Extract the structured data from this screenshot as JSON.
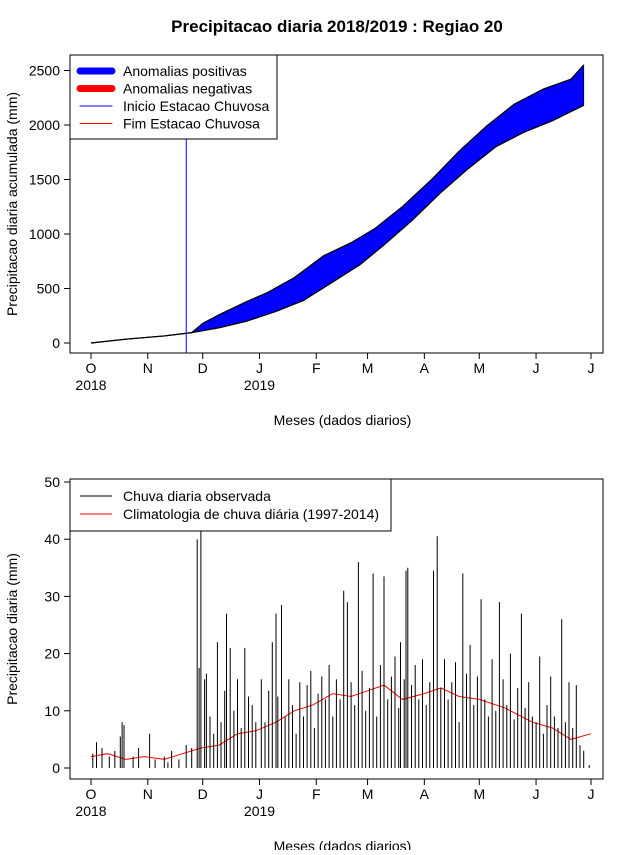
{
  "title": "Precipitacao diaria 2018/2019 : Regiao 20",
  "colors": {
    "positive": "#0000ff",
    "negative": "#ff0000",
    "onset": "#0000ff",
    "end": "#ff0000",
    "observed": "#000000",
    "climatology": "#ff0000"
  },
  "chart_data": [
    {
      "type": "area",
      "xlabel": "Meses (dados diarios)",
      "ylabel": "Precipitacao diaria acumulada (mm)",
      "ylim": [
        0,
        2500
      ],
      "yticks": [
        "0",
        "500",
        "1000",
        "1500",
        "2000",
        "2500"
      ],
      "xaxis": {
        "start": "2018-10-01",
        "end": "2019-07-01",
        "month_ticks": [
          "O",
          "N",
          "D",
          "J",
          "F",
          "M",
          "A",
          "M",
          "J",
          "J"
        ],
        "year_labels": [
          {
            "month_index": 0,
            "text": "2018"
          },
          {
            "month_index": 3,
            "text": "2019"
          }
        ]
      },
      "legend": {
        "placement": "top-left",
        "entries": [
          "Anomalias positivas",
          "Anomalias negativas",
          "Inicio Estacao Chuvosa",
          "Fim Estacao Chuvosa"
        ]
      },
      "onset_date": "2018-11-22",
      "series": [
        {
          "name": "Anomalias positivas",
          "observed_cumulative": [
            {
              "x": "2018-10-01",
              "y": 0
            },
            {
              "x": "2018-10-20",
              "y": 35
            },
            {
              "x": "2018-11-10",
              "y": 65
            },
            {
              "x": "2018-11-25",
              "y": 95
            },
            {
              "x": "2018-12-01",
              "y": 180
            },
            {
              "x": "2018-12-10",
              "y": 260
            },
            {
              "x": "2018-12-25",
              "y": 380
            },
            {
              "x": "2019-01-05",
              "y": 460
            },
            {
              "x": "2019-01-20",
              "y": 600
            },
            {
              "x": "2019-02-05",
              "y": 800
            },
            {
              "x": "2019-02-20",
              "y": 920
            },
            {
              "x": "2019-03-05",
              "y": 1050
            },
            {
              "x": "2019-03-20",
              "y": 1250
            },
            {
              "x": "2019-04-05",
              "y": 1500
            },
            {
              "x": "2019-04-20",
              "y": 1760
            },
            {
              "x": "2019-05-05",
              "y": 1990
            },
            {
              "x": "2019-05-20",
              "y": 2190
            },
            {
              "x": "2019-06-05",
              "y": 2330
            },
            {
              "x": "2019-06-20",
              "y": 2420
            },
            {
              "x": "2019-06-27",
              "y": 2550
            }
          ],
          "climatology_cumulative": [
            {
              "x": "2018-10-01",
              "y": 0
            },
            {
              "x": "2018-10-20",
              "y": 35
            },
            {
              "x": "2018-11-10",
              "y": 65
            },
            {
              "x": "2018-11-25",
              "y": 95
            },
            {
              "x": "2018-12-10",
              "y": 140
            },
            {
              "x": "2018-12-25",
              "y": 200
            },
            {
              "x": "2019-01-10",
              "y": 290
            },
            {
              "x": "2019-01-25",
              "y": 390
            },
            {
              "x": "2019-02-10",
              "y": 560
            },
            {
              "x": "2019-02-25",
              "y": 720
            },
            {
              "x": "2019-03-10",
              "y": 900
            },
            {
              "x": "2019-03-25",
              "y": 1120
            },
            {
              "x": "2019-04-10",
              "y": 1380
            },
            {
              "x": "2019-04-25",
              "y": 1600
            },
            {
              "x": "2019-05-10",
              "y": 1800
            },
            {
              "x": "2019-05-25",
              "y": 1930
            },
            {
              "x": "2019-06-10",
              "y": 2040
            },
            {
              "x": "2019-06-27",
              "y": 2180
            }
          ]
        }
      ]
    },
    {
      "type": "bar",
      "xlabel": "Meses (dados diarios)",
      "ylabel": "Precipitacao diaria (mm)",
      "ylim": [
        0,
        50
      ],
      "yticks": [
        "0",
        "10",
        "20",
        "30",
        "40",
        "50"
      ],
      "xaxis": {
        "start": "2018-10-01",
        "end": "2019-07-01",
        "month_ticks": [
          "O",
          "N",
          "D",
          "J",
          "F",
          "M",
          "A",
          "M",
          "J",
          "J"
        ],
        "year_labels": [
          {
            "month_index": 0,
            "text": "2018"
          },
          {
            "month_index": 3,
            "text": "2019"
          }
        ]
      },
      "legend": {
        "placement": "top-left",
        "entries": [
          "Chuva diaria observada",
          "Climatologia de chuva diária (1997-2014)"
        ]
      },
      "series": [
        {
          "name": "Chuva diaria observada",
          "values": [
            {
              "x": "2018-10-02",
              "y": 2.5
            },
            {
              "x": "2018-10-04",
              "y": 4.5
            },
            {
              "x": "2018-10-07",
              "y": 3.5
            },
            {
              "x": "2018-10-11",
              "y": 2
            },
            {
              "x": "2018-10-14",
              "y": 3
            },
            {
              "x": "2018-10-17",
              "y": 5.5
            },
            {
              "x": "2018-10-18",
              "y": 8
            },
            {
              "x": "2018-10-19",
              "y": 7.5
            },
            {
              "x": "2018-10-24",
              "y": 2
            },
            {
              "x": "2018-10-27",
              "y": 3.5
            },
            {
              "x": "2018-11-02",
              "y": 6
            },
            {
              "x": "2018-11-05",
              "y": 1.5
            },
            {
              "x": "2018-11-10",
              "y": 2
            },
            {
              "x": "2018-11-12",
              "y": 1
            },
            {
              "x": "2018-11-14",
              "y": 3
            },
            {
              "x": "2018-11-18",
              "y": 1.5
            },
            {
              "x": "2018-11-22",
              "y": 4
            },
            {
              "x": "2018-11-25",
              "y": 3.5
            },
            {
              "x": "2018-11-28",
              "y": 40
            },
            {
              "x": "2018-11-29",
              "y": 17.5
            },
            {
              "x": "2018-11-30",
              "y": 42
            },
            {
              "x": "2018-12-02",
              "y": 15.5
            },
            {
              "x": "2018-12-03",
              "y": 16.5
            },
            {
              "x": "2018-12-05",
              "y": 9
            },
            {
              "x": "2018-12-07",
              "y": 6
            },
            {
              "x": "2018-12-09",
              "y": 22
            },
            {
              "x": "2018-12-11",
              "y": 8
            },
            {
              "x": "2018-12-13",
              "y": 13.5
            },
            {
              "x": "2018-12-14",
              "y": 27
            },
            {
              "x": "2018-12-16",
              "y": 21
            },
            {
              "x": "2018-12-18",
              "y": 10
            },
            {
              "x": "2018-12-20",
              "y": 15.5
            },
            {
              "x": "2018-12-22",
              "y": 7
            },
            {
              "x": "2018-12-24",
              "y": 21
            },
            {
              "x": "2018-12-26",
              "y": 12.5
            },
            {
              "x": "2018-12-28",
              "y": 11
            },
            {
              "x": "2018-12-30",
              "y": 8
            },
            {
              "x": "2019-01-02",
              "y": 15.5
            },
            {
              "x": "2019-01-04",
              "y": 8
            },
            {
              "x": "2019-01-06",
              "y": 13.5
            },
            {
              "x": "2019-01-08",
              "y": 22
            },
            {
              "x": "2019-01-10",
              "y": 27
            },
            {
              "x": "2019-01-11",
              "y": 12.5
            },
            {
              "x": "2019-01-13",
              "y": 28.5
            },
            {
              "x": "2019-01-15",
              "y": 9
            },
            {
              "x": "2019-01-17",
              "y": 15.5
            },
            {
              "x": "2019-01-19",
              "y": 11
            },
            {
              "x": "2019-01-21",
              "y": 6
            },
            {
              "x": "2019-01-23",
              "y": 15
            },
            {
              "x": "2019-01-25",
              "y": 9
            },
            {
              "x": "2019-01-27",
              "y": 14.5
            },
            {
              "x": "2019-01-29",
              "y": 17
            },
            {
              "x": "2019-01-31",
              "y": 7
            },
            {
              "x": "2019-02-02",
              "y": 13
            },
            {
              "x": "2019-02-04",
              "y": 16
            },
            {
              "x": "2019-02-06",
              "y": 12
            },
            {
              "x": "2019-02-08",
              "y": 18
            },
            {
              "x": "2019-02-10",
              "y": 9
            },
            {
              "x": "2019-02-12",
              "y": 15.5
            },
            {
              "x": "2019-02-14",
              "y": 12
            },
            {
              "x": "2019-02-16",
              "y": 31
            },
            {
              "x": "2019-02-18",
              "y": 29
            },
            {
              "x": "2019-02-20",
              "y": 15
            },
            {
              "x": "2019-02-22",
              "y": 11
            },
            {
              "x": "2019-02-24",
              "y": 36
            },
            {
              "x": "2019-02-26",
              "y": 17
            },
            {
              "x": "2019-02-28",
              "y": 10
            },
            {
              "x": "2019-03-02",
              "y": 14
            },
            {
              "x": "2019-03-04",
              "y": 34
            },
            {
              "x": "2019-03-06",
              "y": 9
            },
            {
              "x": "2019-03-08",
              "y": 18
            },
            {
              "x": "2019-03-10",
              "y": 33.5
            },
            {
              "x": "2019-03-12",
              "y": 12
            },
            {
              "x": "2019-03-14",
              "y": 16
            },
            {
              "x": "2019-03-16",
              "y": 19.5
            },
            {
              "x": "2019-03-18",
              "y": 10.5
            },
            {
              "x": "2019-03-19",
              "y": 22
            },
            {
              "x": "2019-03-21",
              "y": 15.5
            },
            {
              "x": "2019-03-22",
              "y": 34.5
            },
            {
              "x": "2019-03-23",
              "y": 35
            },
            {
              "x": "2019-03-25",
              "y": 14.5
            },
            {
              "x": "2019-03-27",
              "y": 18
            },
            {
              "x": "2019-03-29",
              "y": 12
            },
            {
              "x": "2019-03-31",
              "y": 19
            },
            {
              "x": "2019-04-02",
              "y": 11
            },
            {
              "x": "2019-04-04",
              "y": 15
            },
            {
              "x": "2019-04-06",
              "y": 34.5
            },
            {
              "x": "2019-04-08",
              "y": 40.5
            },
            {
              "x": "2019-04-10",
              "y": 14
            },
            {
              "x": "2019-04-12",
              "y": 19
            },
            {
              "x": "2019-04-14",
              "y": 12
            },
            {
              "x": "2019-04-16",
              "y": 15
            },
            {
              "x": "2019-04-18",
              "y": 18.5
            },
            {
              "x": "2019-04-20",
              "y": 8
            },
            {
              "x": "2019-04-22",
              "y": 34
            },
            {
              "x": "2019-04-24",
              "y": 16.5
            },
            {
              "x": "2019-04-26",
              "y": 21.5
            },
            {
              "x": "2019-04-28",
              "y": 11
            },
            {
              "x": "2019-04-30",
              "y": 16
            },
            {
              "x": "2019-05-02",
              "y": 29.5
            },
            {
              "x": "2019-05-04",
              "y": 12
            },
            {
              "x": "2019-05-06",
              "y": 9
            },
            {
              "x": "2019-05-08",
              "y": 19
            },
            {
              "x": "2019-05-10",
              "y": 10
            },
            {
              "x": "2019-05-12",
              "y": 29
            },
            {
              "x": "2019-05-14",
              "y": 15.5
            },
            {
              "x": "2019-05-16",
              "y": 11
            },
            {
              "x": "2019-05-18",
              "y": 20
            },
            {
              "x": "2019-05-20",
              "y": 8.5
            },
            {
              "x": "2019-05-22",
              "y": 14
            },
            {
              "x": "2019-05-24",
              "y": 27
            },
            {
              "x": "2019-05-26",
              "y": 10.5
            },
            {
              "x": "2019-05-28",
              "y": 15
            },
            {
              "x": "2019-05-30",
              "y": 9
            },
            {
              "x": "2019-06-01",
              "y": 8
            },
            {
              "x": "2019-06-03",
              "y": 19.5
            },
            {
              "x": "2019-06-05",
              "y": 6
            },
            {
              "x": "2019-06-07",
              "y": 11
            },
            {
              "x": "2019-06-09",
              "y": 16
            },
            {
              "x": "2019-06-11",
              "y": 9
            },
            {
              "x": "2019-06-13",
              "y": 7
            },
            {
              "x": "2019-06-15",
              "y": 26
            },
            {
              "x": "2019-06-17",
              "y": 8
            },
            {
              "x": "2019-06-19",
              "y": 15
            },
            {
              "x": "2019-06-21",
              "y": 7
            },
            {
              "x": "2019-06-23",
              "y": 14.5
            },
            {
              "x": "2019-06-25",
              "y": 4
            },
            {
              "x": "2019-06-27",
              "y": 3
            },
            {
              "x": "2019-06-30",
              "y": 0.5
            }
          ]
        },
        {
          "name": "Climatologia de chuva diária (1997-2014)",
          "type": "line",
          "values": [
            {
              "x": "2018-10-01",
              "y": 2
            },
            {
              "x": "2018-10-10",
              "y": 2.5
            },
            {
              "x": "2018-10-20",
              "y": 1.5
            },
            {
              "x": "2018-10-30",
              "y": 2
            },
            {
              "x": "2018-11-10",
              "y": 1.5
            },
            {
              "x": "2018-11-20",
              "y": 2.5
            },
            {
              "x": "2018-11-30",
              "y": 3.5
            },
            {
              "x": "2018-12-10",
              "y": 4
            },
            {
              "x": "2018-12-20",
              "y": 6
            },
            {
              "x": "2018-12-30",
              "y": 6.5
            },
            {
              "x": "2019-01-10",
              "y": 8
            },
            {
              "x": "2019-01-20",
              "y": 10
            },
            {
              "x": "2019-01-30",
              "y": 11
            },
            {
              "x": "2019-02-10",
              "y": 13
            },
            {
              "x": "2019-02-20",
              "y": 12.5
            },
            {
              "x": "2019-03-01",
              "y": 13.5
            },
            {
              "x": "2019-03-10",
              "y": 14.5
            },
            {
              "x": "2019-03-20",
              "y": 12
            },
            {
              "x": "2019-04-01",
              "y": 13
            },
            {
              "x": "2019-04-10",
              "y": 14
            },
            {
              "x": "2019-04-20",
              "y": 12.5
            },
            {
              "x": "2019-05-01",
              "y": 12
            },
            {
              "x": "2019-05-15",
              "y": 10.5
            },
            {
              "x": "2019-05-30",
              "y": 8
            },
            {
              "x": "2019-06-10",
              "y": 7
            },
            {
              "x": "2019-06-20",
              "y": 5
            },
            {
              "x": "2019-07-01",
              "y": 6
            }
          ]
        }
      ]
    }
  ]
}
